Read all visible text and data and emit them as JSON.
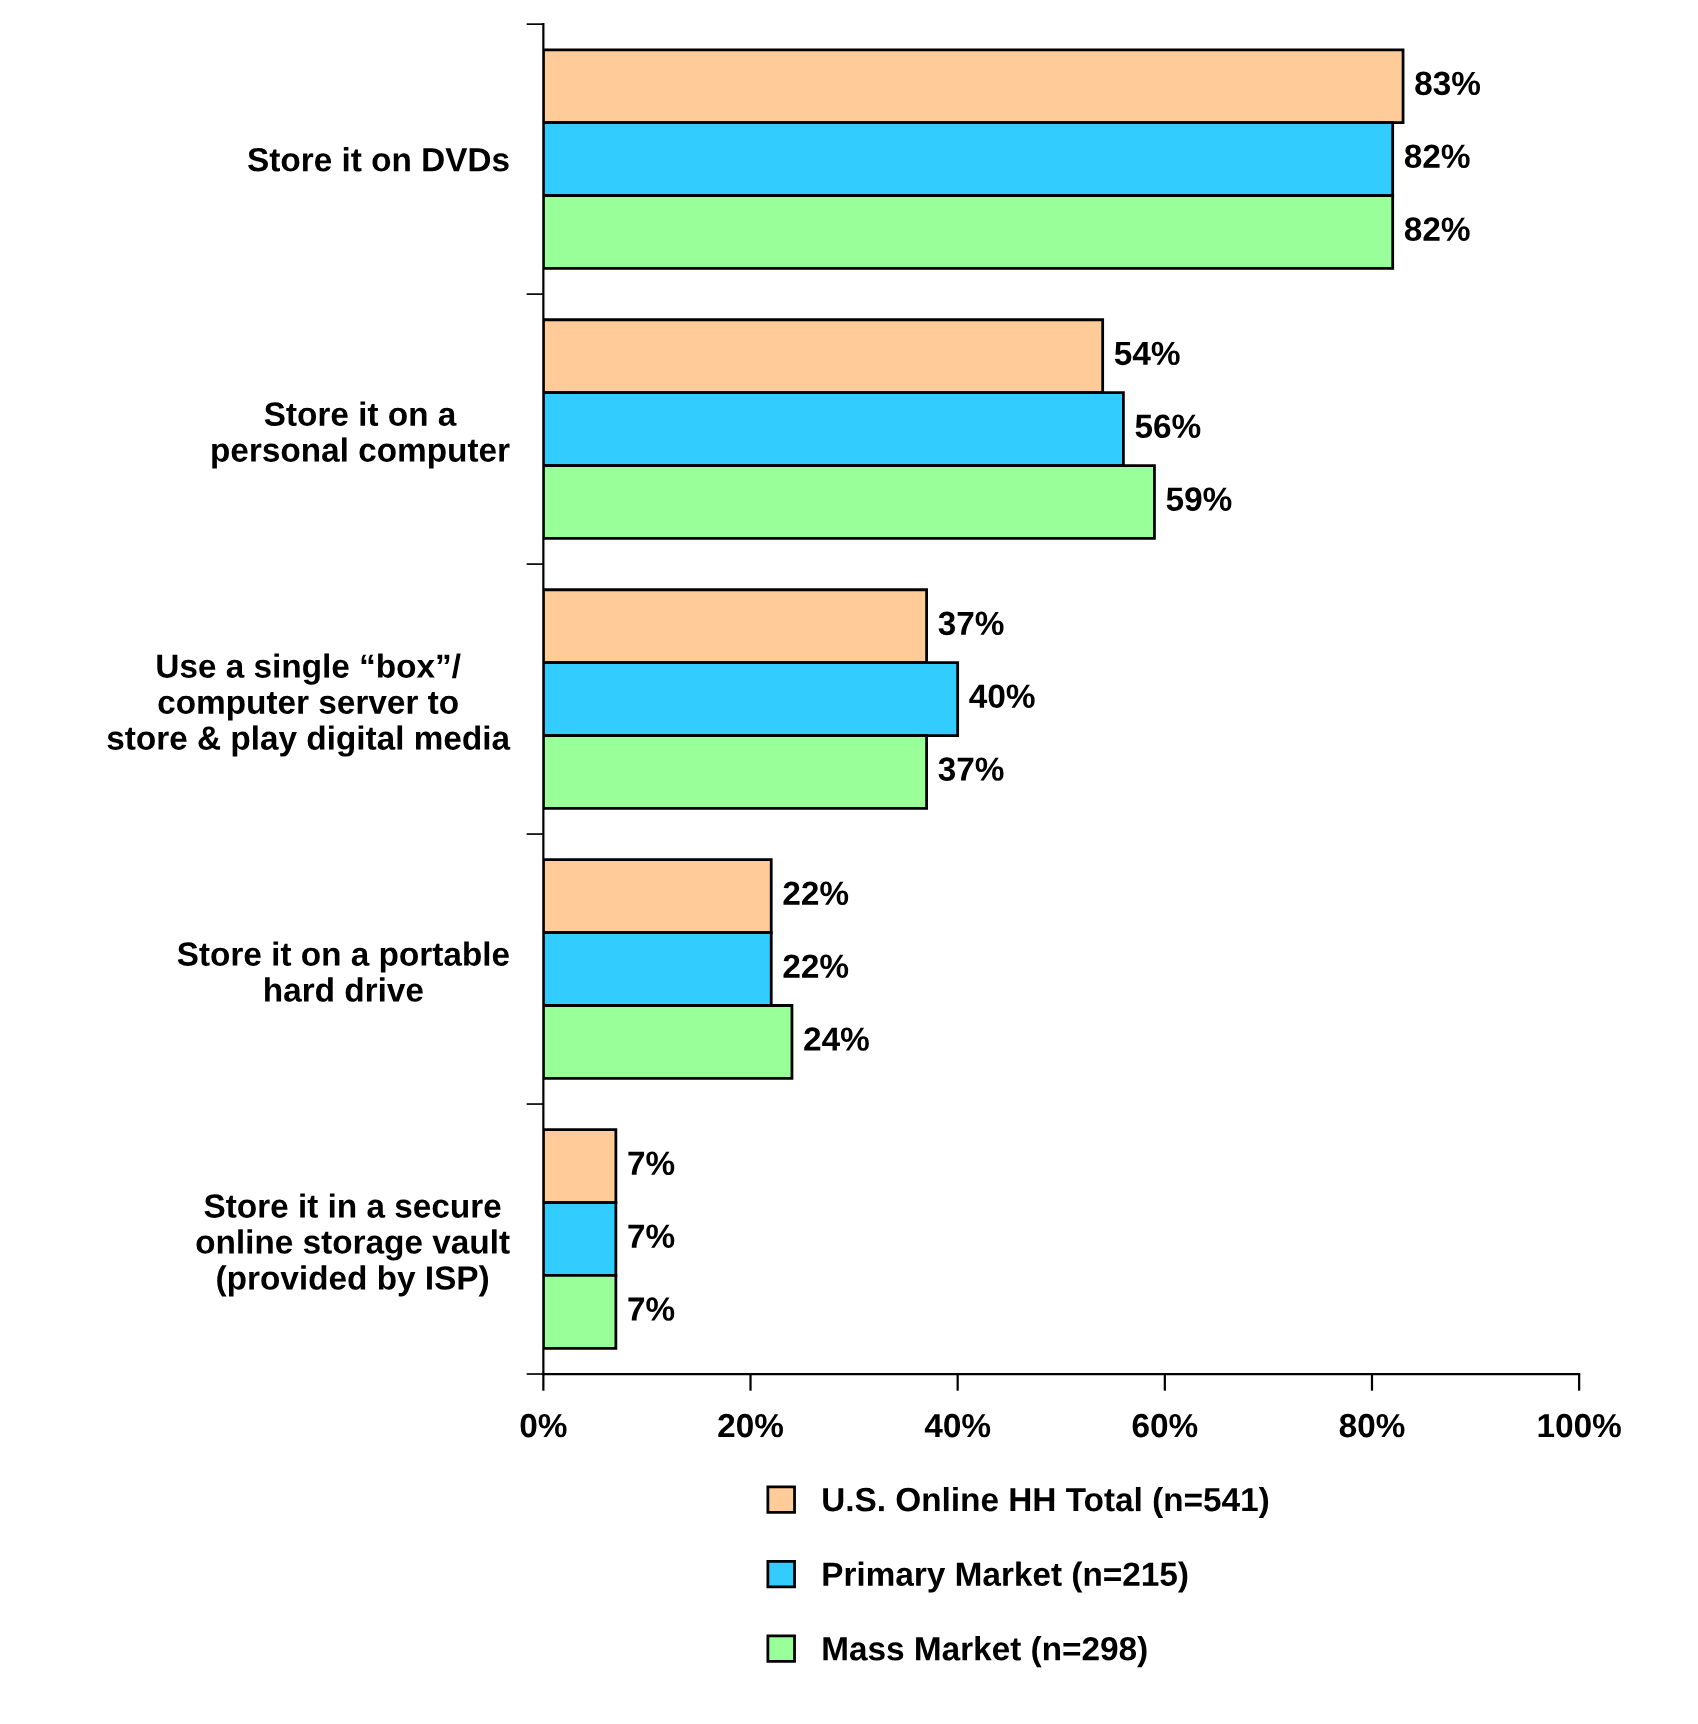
{
  "chart_data": {
    "type": "bar",
    "orientation": "horizontal",
    "categories": [
      "Store it on DVDs",
      "Store it on a\npersonal computer",
      "Use a single “box”/\ncomputer server to\nstore & play digital media",
      "Store it on a portable\nhard drive",
      "Store it in a secure\nonline storage vault\n(provided by ISP)"
    ],
    "series": [
      {
        "name": "U.S. Online HH Total (n=541)",
        "color": "#ffcc99",
        "values": [
          83,
          54,
          37,
          22,
          7
        ],
        "value_labels": [
          "83%",
          "54%",
          "37%",
          "22%",
          "7%"
        ]
      },
      {
        "name": "Primary Market (n=215)",
        "color": "#33ccff",
        "values": [
          82,
          56,
          40,
          22,
          7
        ],
        "value_labels": [
          "82%",
          "56%",
          "40%",
          "22%",
          "7%"
        ]
      },
      {
        "name": "Mass Market (n=298)",
        "color": "#99ff99",
        "values": [
          82,
          59,
          37,
          24,
          7
        ],
        "value_labels": [
          "82%",
          "59%",
          "37%",
          "24%",
          "7%"
        ]
      }
    ],
    "xlim": [
      0,
      100
    ],
    "xticks": [
      {
        "value": 0,
        "label": "0%"
      },
      {
        "value": 20,
        "label": "20%"
      },
      {
        "value": 40,
        "label": "40%"
      },
      {
        "value": 60,
        "label": "60%"
      },
      {
        "value": 80,
        "label": "80%"
      },
      {
        "value": 100,
        "label": "100%"
      }
    ],
    "grid": false,
    "legend": "bottom"
  }
}
